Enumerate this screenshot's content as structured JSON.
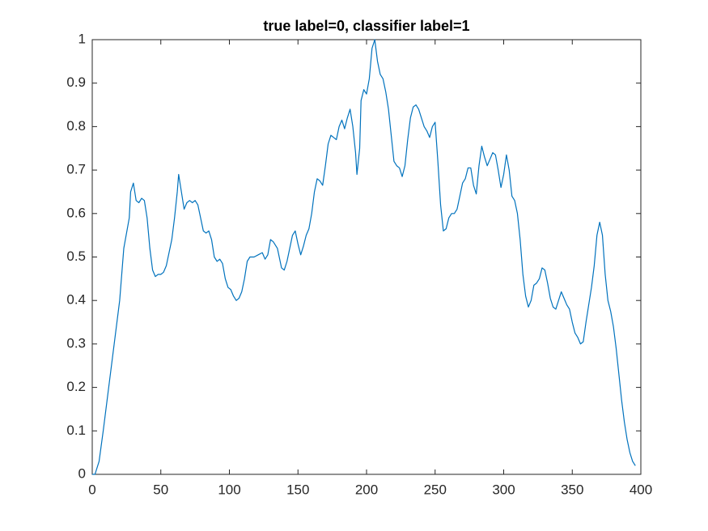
{
  "chart_data": {
    "type": "line",
    "title": "true label=0, classifier label=1",
    "x": [
      0,
      2,
      5,
      8,
      12,
      16,
      20,
      23,
      27,
      28,
      30,
      32,
      34,
      36,
      38,
      40,
      42,
      44,
      46,
      48,
      50,
      52,
      54,
      56,
      58,
      60,
      62,
      63,
      65,
      67,
      69,
      71,
      73,
      75,
      77,
      79,
      81,
      83,
      85,
      87,
      89,
      91,
      93,
      95,
      97,
      99,
      101,
      103,
      105,
      107,
      109,
      111,
      113,
      115,
      118,
      121,
      124,
      126,
      128,
      130,
      132,
      135,
      137,
      138,
      140,
      142,
      144,
      146,
      148,
      150,
      152,
      154,
      156,
      158,
      160,
      162,
      164,
      166,
      168,
      170,
      172,
      174,
      176,
      178,
      180,
      182,
      184,
      186,
      188,
      190,
      192,
      193,
      195,
      196,
      198,
      200,
      202,
      204,
      206,
      208,
      210,
      212,
      214,
      216,
      218,
      220,
      222,
      224,
      226,
      228,
      230,
      232,
      234,
      236,
      238,
      240,
      242,
      244,
      246,
      248,
      250,
      252,
      254,
      256,
      258,
      260,
      262,
      264,
      266,
      268,
      270,
      272,
      274,
      276,
      278,
      280,
      282,
      284,
      286,
      288,
      290,
      292,
      294,
      296,
      298,
      300,
      302,
      304,
      306,
      308,
      310,
      312,
      314,
      316,
      318,
      320,
      322,
      324,
      326,
      328,
      330,
      332,
      334,
      336,
      338,
      340,
      342,
      344,
      346,
      348,
      350,
      352,
      354,
      356,
      358,
      360,
      362,
      364,
      366,
      368,
      370,
      372,
      374,
      376,
      378,
      380,
      382,
      384,
      386,
      388,
      390,
      392,
      394,
      396
    ],
    "series": [
      {
        "color": "#0072bd",
        "values": [
          0,
          0,
          0.03,
          0.1,
          0.2,
          0.3,
          0.4,
          0.52,
          0.59,
          0.65,
          0.67,
          0.63,
          0.625,
          0.635,
          0.63,
          0.59,
          0.52,
          0.47,
          0.455,
          0.46,
          0.46,
          0.465,
          0.48,
          0.51,
          0.54,
          0.59,
          0.65,
          0.69,
          0.65,
          0.61,
          0.625,
          0.63,
          0.625,
          0.63,
          0.62,
          0.59,
          0.56,
          0.555,
          0.56,
          0.54,
          0.5,
          0.49,
          0.495,
          0.485,
          0.45,
          0.43,
          0.425,
          0.41,
          0.4,
          0.405,
          0.42,
          0.45,
          0.49,
          0.5,
          0.5,
          0.505,
          0.51,
          0.495,
          0.505,
          0.54,
          0.535,
          0.52,
          0.49,
          0.475,
          0.47,
          0.49,
          0.52,
          0.55,
          0.56,
          0.53,
          0.505,
          0.525,
          0.55,
          0.565,
          0.6,
          0.65,
          0.68,
          0.675,
          0.665,
          0.71,
          0.76,
          0.78,
          0.775,
          0.77,
          0.8,
          0.815,
          0.795,
          0.82,
          0.84,
          0.8,
          0.74,
          0.69,
          0.75,
          0.86,
          0.885,
          0.875,
          0.91,
          0.98,
          1.0,
          0.95,
          0.92,
          0.91,
          0.88,
          0.84,
          0.78,
          0.72,
          0.71,
          0.705,
          0.685,
          0.71,
          0.77,
          0.82,
          0.845,
          0.85,
          0.84,
          0.82,
          0.8,
          0.79,
          0.775,
          0.8,
          0.81,
          0.72,
          0.62,
          0.56,
          0.565,
          0.59,
          0.6,
          0.6,
          0.61,
          0.64,
          0.67,
          0.68,
          0.705,
          0.705,
          0.665,
          0.645,
          0.71,
          0.755,
          0.73,
          0.71,
          0.725,
          0.74,
          0.735,
          0.7,
          0.66,
          0.69,
          0.735,
          0.7,
          0.64,
          0.63,
          0.6,
          0.54,
          0.46,
          0.41,
          0.385,
          0.4,
          0.435,
          0.44,
          0.45,
          0.475,
          0.47,
          0.44,
          0.405,
          0.385,
          0.38,
          0.4,
          0.42,
          0.405,
          0.39,
          0.38,
          0.35,
          0.325,
          0.315,
          0.3,
          0.305,
          0.35,
          0.39,
          0.43,
          0.48,
          0.55,
          0.58,
          0.55,
          0.46,
          0.4,
          0.375,
          0.34,
          0.29,
          0.23,
          0.17,
          0.12,
          0.08,
          0.05,
          0.03,
          0.02
        ]
      }
    ],
    "xlim": [
      0,
      400
    ],
    "xticks": [
      0,
      50,
      100,
      150,
      200,
      250,
      300,
      350,
      400
    ],
    "ylim": [
      0,
      1
    ],
    "yticks": [
      0,
      0.1,
      0.2,
      0.3,
      0.4,
      0.5,
      0.6,
      0.7,
      0.8,
      0.9,
      1
    ],
    "grid": false
  }
}
